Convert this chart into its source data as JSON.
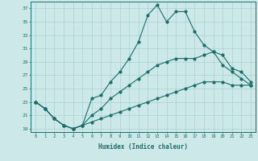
{
  "xlabel": "Humidex (Indice chaleur)",
  "ylabel": "",
  "background_color": "#cce8e8",
  "line_color": "#1a6e6a",
  "grid_color": "#aad0d0",
  "xlim": [
    -0.5,
    23.5
  ],
  "ylim": [
    18.5,
    38.0
  ],
  "yticks": [
    19,
    21,
    23,
    25,
    27,
    29,
    31,
    33,
    35,
    37
  ],
  "xticks": [
    0,
    1,
    2,
    3,
    4,
    5,
    6,
    7,
    8,
    9,
    10,
    11,
    12,
    13,
    14,
    15,
    16,
    17,
    18,
    19,
    20,
    21,
    22,
    23
  ],
  "line1_x": [
    0,
    1,
    2,
    3,
    4,
    5,
    6,
    7,
    8,
    9,
    10,
    11,
    12,
    13,
    14,
    15,
    16,
    17,
    18,
    19,
    20,
    21,
    22,
    23
  ],
  "line1_y": [
    23,
    22,
    20.5,
    19.5,
    19,
    19.5,
    23.5,
    24,
    26,
    27.5,
    29.5,
    32,
    36,
    37.5,
    35,
    36.5,
    36.5,
    33.5,
    31.5,
    30.5,
    28.5,
    27.5,
    26.5,
    25.5
  ],
  "line2_x": [
    0,
    1,
    2,
    3,
    4,
    5,
    6,
    7,
    8,
    9,
    10,
    11,
    12,
    13,
    14,
    15,
    16,
    17,
    18,
    19,
    20,
    21,
    22,
    23
  ],
  "line2_y": [
    23,
    22,
    20.5,
    19.5,
    19,
    19.5,
    21,
    22,
    23.5,
    24.5,
    25.5,
    26.5,
    27.5,
    28.5,
    29,
    29.5,
    29.5,
    29.5,
    30,
    30.5,
    30,
    28,
    27.5,
    26
  ],
  "line3_x": [
    0,
    1,
    2,
    3,
    4,
    5,
    6,
    7,
    8,
    9,
    10,
    11,
    12,
    13,
    14,
    15,
    16,
    17,
    18,
    19,
    20,
    21,
    22,
    23
  ],
  "line3_y": [
    23,
    22,
    20.5,
    19.5,
    19,
    19.5,
    20,
    20.5,
    21,
    21.5,
    22,
    22.5,
    23,
    23.5,
    24,
    24.5,
    25,
    25.5,
    26,
    26,
    26,
    25.5,
    25.5,
    25.5
  ]
}
